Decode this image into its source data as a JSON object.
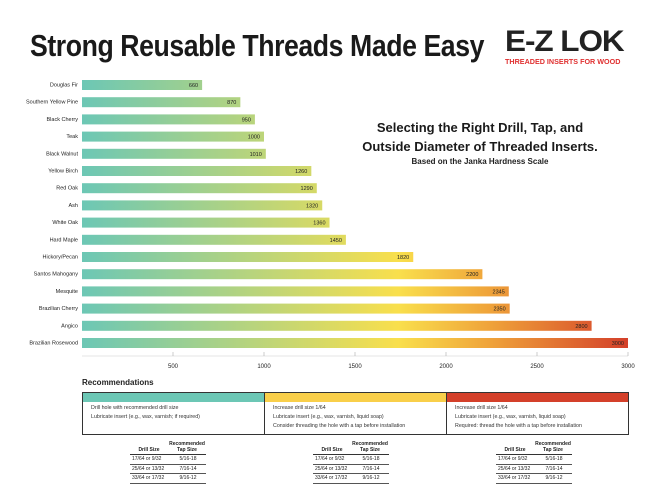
{
  "title": "Strong Reusable Threads Made Easy",
  "logo": {
    "text": "E-Z LOK",
    "tagline": "THREADED INSERTS FOR WOOD"
  },
  "subtitle": {
    "line1": "Selecting the Right Drill, Tap, and",
    "line2": "Outside Diameter of Threaded Inserts.",
    "line3": "Based on the Janka Hardness Scale"
  },
  "colors": {
    "teal": "#6cc7b5",
    "yellow": "#f9df4c",
    "orange": "#efa23a",
    "red": "#d4402a"
  },
  "chart_data": {
    "type": "bar",
    "orientation": "horizontal",
    "categories": [
      "Douglas Fir",
      "Southern Yellow Pine",
      "Black Cherry",
      "Teak",
      "Black Walnut",
      "Yellow Birch",
      "Red Oak",
      "Ash",
      "White Oak",
      "Hard Maple",
      "Hickory/Pecan",
      "Santos Mahogany",
      "Mesquite",
      "Brazilian Cherry",
      "Angico",
      "Brazilian Rosewood"
    ],
    "values": [
      660,
      870,
      950,
      1000,
      1010,
      1260,
      1290,
      1320,
      1360,
      1450,
      1820,
      2200,
      2345,
      2350,
      2800,
      3000
    ],
    "xlim": [
      0,
      3000
    ],
    "xticks": [
      500,
      1000,
      1500,
      2000,
      2500,
      3000
    ],
    "grid": false,
    "color_scale": "teal-yellow-red gradient by value"
  },
  "recommendations": {
    "title": "Recommendations",
    "columns": [
      {
        "color": "#6cc7b5",
        "lines": [
          "Drill hole with recommended drill size",
          "Lubricate insert (e.g., wax, varnish; if required)"
        ]
      },
      {
        "color": "#f9cf4a",
        "lines": [
          "Increase drill size 1/64",
          "Lubricate insert (e.g., wax, varnish, liquid soap)",
          "Consider threading the hole with a tap before installation"
        ]
      },
      {
        "color": "#d4402a",
        "lines": [
          "Increase drill size 1/64",
          "Lubricate insert (e.g., wax, varnish, liquid soap)",
          "Required: thread the hole with a tap before installation"
        ]
      }
    ],
    "table_headers": {
      "drill": "Drill Size",
      "tap": "Recommended Tap Size"
    },
    "tables": [
      [
        [
          "17/64 or 9/32",
          "5/16-18"
        ],
        [
          "25/64 or 13/32",
          "7/16-14"
        ],
        [
          "33/64 or 17/32",
          "9/16-12"
        ]
      ],
      [
        [
          "17/64 or 9/32",
          "5/16-18"
        ],
        [
          "25/64 or 13/32",
          "7/16-14"
        ],
        [
          "33/64 or 17/32",
          "9/16-12"
        ]
      ],
      [
        [
          "17/64 or 9/32",
          "5/16-18"
        ],
        [
          "25/64 or 13/32",
          "7/16-14"
        ],
        [
          "33/64 or 17/32",
          "9/16-12"
        ]
      ]
    ]
  }
}
